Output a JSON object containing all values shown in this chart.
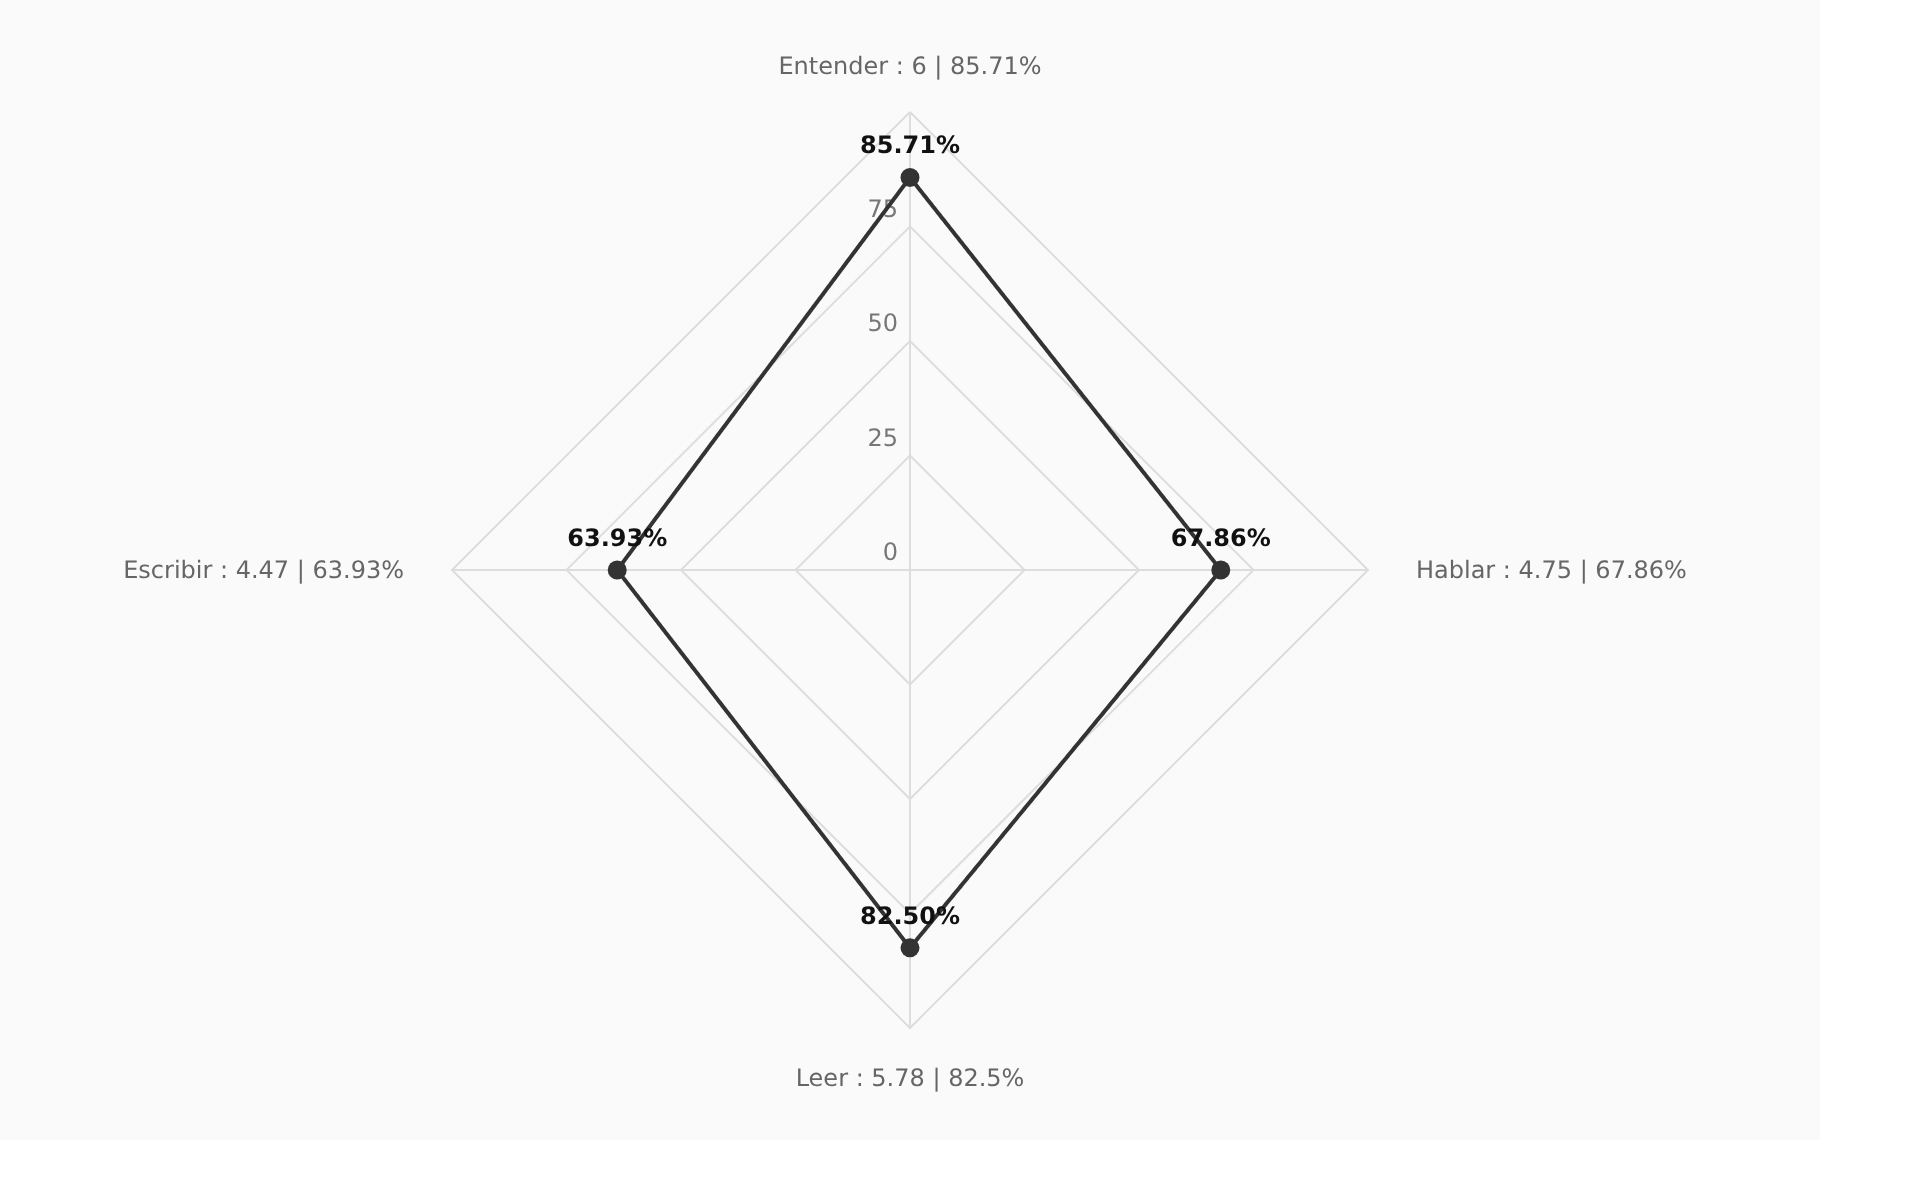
{
  "chart_data": {
    "type": "radar",
    "categories": [
      "Entender : 6 | 85.71%",
      "Hablar : 4.75 | 67.86%",
      "Leer  : 5.78 | 82.5%",
      "Escribir : 4.47 | 63.93%"
    ],
    "series": [
      {
        "color": "#333333",
        "values": [
          85.71,
          67.86,
          82.5,
          63.93
        ],
        "value_labels": [
          "85.71%",
          "67.86%",
          "82.50%",
          "63.93%"
        ]
      }
    ],
    "ylim": [
      0,
      100
    ],
    "yticks": [
      0,
      25,
      50,
      75
    ],
    "grid": true,
    "marker": "circle",
    "line_style": "solid"
  }
}
